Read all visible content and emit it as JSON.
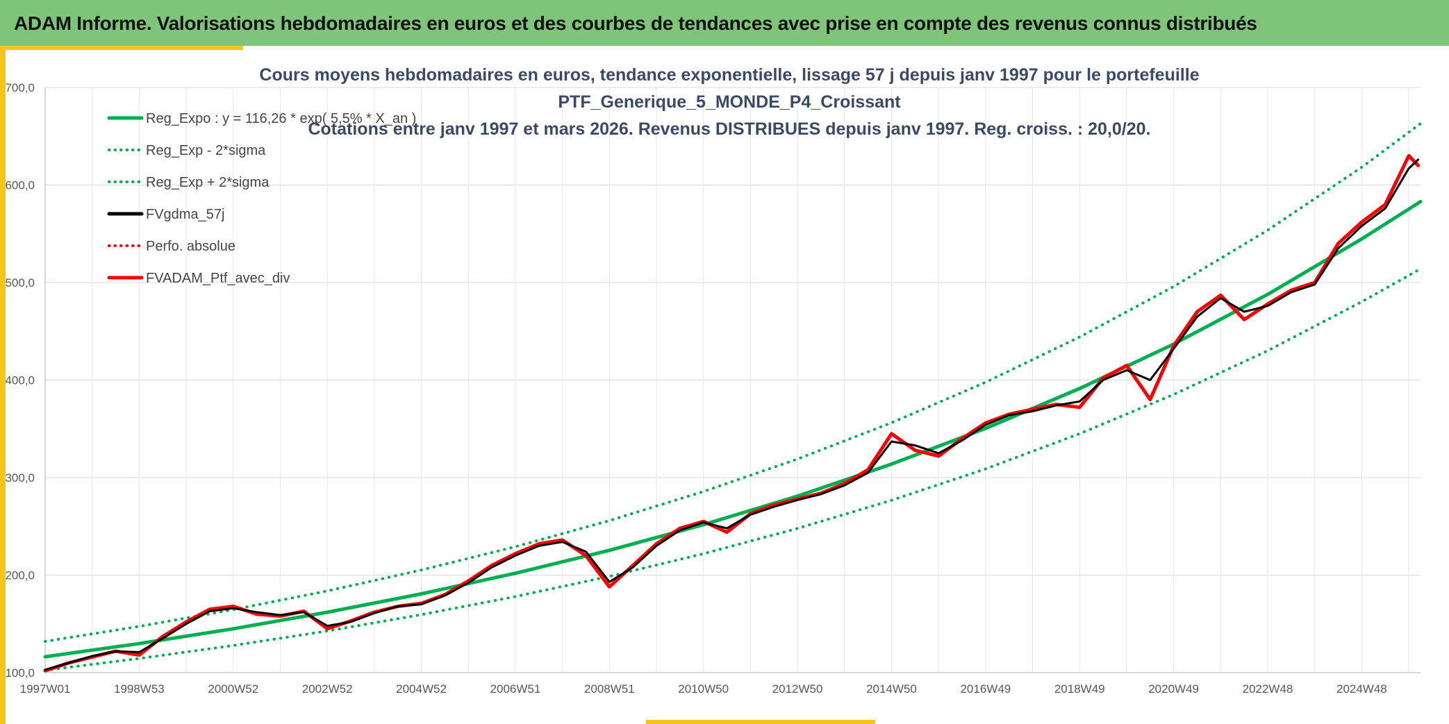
{
  "header": {
    "title": "ADAM Informe. Valorisations hebdomadaires en euros et des courbes de tendances avec prise en compte des revenus connus distribués",
    "background": "#7ec57a",
    "accent": "#f5c518"
  },
  "chart_data": {
    "type": "line",
    "title_lines": [
      "Cours moyens hebdomadaires en euros, tendance exponentielle, lissage 57 j depuis janv 1997 pour le portefeuille",
      "PTF_Generique_5_MONDE_P4_Croissant",
      "Cotations entre janv 1997 et mars 2026. Revenus DISTRIBUES depuis janv 1997. Reg. croiss. : 20,0/20."
    ],
    "xlabel": "",
    "ylabel": "",
    "ylim": [
      100,
      700
    ],
    "xlim": [
      1997.0,
      2026.25
    ],
    "y_ticks": [
      "100,0",
      "200,0",
      "300,0",
      "400,0",
      "500,0",
      "600,0",
      "700,0"
    ],
    "x_tick_labels": [
      "1997W01",
      "1998W53",
      "2000W52",
      "2002W52",
      "2004W52",
      "2006W51",
      "2008W51",
      "2010W50",
      "2012W50",
      "2014W50",
      "2016W49",
      "2018W49",
      "2020W49",
      "2022W48",
      "2024W48"
    ],
    "grid": true,
    "legend": [
      {
        "label": "Reg_Expo : y = 116,26 * exp( 5,5% *  X_an )",
        "color": "#00b050",
        "style": "solid"
      },
      {
        "label": "Reg_Exp - 2*sigma",
        "color": "#00b050",
        "style": "dotted"
      },
      {
        "label": "Reg_Exp + 2*sigma",
        "color": "#00b050",
        "style": "dotted"
      },
      {
        "label": "FVgdma_57j",
        "color": "#000000",
        "style": "solid"
      },
      {
        "label": "Perfo. absolue",
        "color": "#ff0000",
        "style": "dotted"
      },
      {
        "label": "FVADAM_Ptf_avec_div",
        "color": "#ff0000",
        "style": "solid"
      }
    ],
    "series": [
      {
        "name": "Reg_Expo",
        "color": "#00b050",
        "style": "solid",
        "x": [
          1997,
          1999,
          2001,
          2003,
          2005,
          2007,
          2009,
          2011,
          2013,
          2015,
          2017,
          2019,
          2021,
          2023,
          2025,
          2026.25
        ],
        "values": [
          116.3,
          129.8,
          145.0,
          161.9,
          180.8,
          201.9,
          225.4,
          251.7,
          281.0,
          313.8,
          350.4,
          391.3,
          436.9,
          487.8,
          544.7,
          583.0
        ]
      },
      {
        "name": "Reg_Exp - 2*sigma",
        "color": "#00b050",
        "style": "dotted",
        "x": [
          1997,
          1999,
          2001,
          2003,
          2005,
          2007,
          2009,
          2011,
          2013,
          2015,
          2017,
          2019,
          2021,
          2023,
          2025,
          2026.25
        ],
        "values": [
          102.5,
          114.5,
          127.8,
          142.7,
          159.4,
          178.0,
          198.7,
          221.9,
          247.8,
          276.7,
          308.9,
          345.0,
          385.2,
          430.1,
          480.3,
          514.0
        ]
      },
      {
        "name": "Reg_Exp + 2*sigma",
        "color": "#00b050",
        "style": "dotted",
        "x": [
          1997,
          1999,
          2001,
          2003,
          2005,
          2007,
          2009,
          2011,
          2013,
          2015,
          2017,
          2019,
          2021,
          2023,
          2025,
          2026.25
        ],
        "values": [
          132.0,
          147.4,
          164.6,
          183.8,
          205.2,
          229.1,
          255.9,
          285.7,
          319.0,
          356.2,
          397.7,
          444.1,
          495.9,
          553.7,
          618.2,
          663.0
        ]
      },
      {
        "name": "FVgdma_57j",
        "color": "#000000",
        "style": "solid",
        "x": [
          1997,
          1997.5,
          1998,
          1998.5,
          1999,
          1999.5,
          2000,
          2000.5,
          2001,
          2001.5,
          2002,
          2002.5,
          2003,
          2003.5,
          2004,
          2004.5,
          2005,
          2005.5,
          2006,
          2006.5,
          2007,
          2007.5,
          2008,
          2008.5,
          2009,
          2009.5,
          2010,
          2010.5,
          2011,
          2011.5,
          2012,
          2012.5,
          2013,
          2013.5,
          2014,
          2014.5,
          2015,
          2015.5,
          2016,
          2016.5,
          2017,
          2017.5,
          2018,
          2018.5,
          2019,
          2019.5,
          2020,
          2020.5,
          2021,
          2021.5,
          2022,
          2022.5,
          2023,
          2023.5,
          2024,
          2024.5,
          2025,
          2025.5,
          2026,
          2026.2
        ],
        "values": [
          103,
          110,
          117,
          122,
          121,
          135,
          150,
          163,
          166,
          162,
          159,
          162,
          148,
          152,
          161,
          168,
          170,
          179,
          192,
          208,
          220,
          230,
          234,
          224,
          193,
          208,
          230,
          246,
          254,
          248,
          262,
          270,
          277,
          283,
          292,
          305,
          337,
          333,
          325,
          338,
          354,
          364,
          368,
          374,
          378,
          400,
          410,
          400,
          432,
          465,
          484,
          470,
          476,
          490,
          498,
          535,
          558,
          576,
          617,
          626
        ]
      },
      {
        "name": "Perfo. absolue",
        "color": "#ff0000",
        "style": "dotted",
        "x": [
          1997,
          1997.5,
          1998,
          1998.5,
          1999,
          1999.5,
          2000,
          2000.5,
          2001,
          2001.5,
          2002,
          2002.5,
          2003,
          2003.5,
          2004,
          2004.5,
          2005,
          2005.5,
          2006,
          2006.5,
          2007,
          2007.5,
          2008,
          2008.5,
          2009,
          2009.5,
          2010,
          2010.5,
          2011,
          2011.5,
          2012,
          2012.5,
          2013,
          2013.5,
          2014,
          2014.5,
          2015,
          2015.5,
          2016,
          2016.5,
          2017,
          2017.5,
          2018,
          2018.5,
          2019,
          2019.5,
          2020,
          2020.5,
          2021,
          2021.5,
          2022,
          2022.5,
          2023,
          2023.5,
          2024,
          2024.5,
          2025,
          2025.5,
          2026,
          2026.2
        ],
        "values": [
          102,
          110,
          116,
          122,
          118,
          137,
          152,
          165,
          168,
          160,
          158,
          163,
          145,
          153,
          162,
          168,
          171,
          180,
          194,
          210,
          222,
          232,
          236,
          220,
          188,
          210,
          232,
          248,
          255,
          244,
          263,
          272,
          278,
          284,
          294,
          308,
          345,
          328,
          322,
          340,
          356,
          365,
          370,
          375,
          372,
          402,
          415,
          380,
          435,
          470,
          487,
          462,
          478,
          492,
          500,
          540,
          562,
          580,
          630,
          620
        ]
      },
      {
        "name": "FVADAM_Ptf_avec_div",
        "color": "#ff0000",
        "style": "solid",
        "x": [
          1997,
          1997.5,
          1998,
          1998.5,
          1999,
          1999.5,
          2000,
          2000.5,
          2001,
          2001.5,
          2002,
          2002.5,
          2003,
          2003.5,
          2004,
          2004.5,
          2005,
          2005.5,
          2006,
          2006.5,
          2007,
          2007.5,
          2008,
          2008.5,
          2009,
          2009.5,
          2010,
          2010.5,
          2011,
          2011.5,
          2012,
          2012.5,
          2013,
          2013.5,
          2014,
          2014.5,
          2015,
          2015.5,
          2016,
          2016.5,
          2017,
          2017.5,
          2018,
          2018.5,
          2019,
          2019.5,
          2020,
          2020.5,
          2021,
          2021.5,
          2022,
          2022.5,
          2023,
          2023.5,
          2024,
          2024.5,
          2025,
          2025.5,
          2026,
          2026.2
        ],
        "values": [
          102,
          110,
          116,
          122,
          118,
          137,
          152,
          165,
          168,
          160,
          158,
          163,
          145,
          153,
          162,
          168,
          171,
          180,
          194,
          210,
          222,
          232,
          236,
          220,
          188,
          210,
          232,
          248,
          255,
          244,
          263,
          272,
          278,
          284,
          294,
          308,
          345,
          328,
          322,
          340,
          356,
          365,
          370,
          375,
          372,
          402,
          415,
          380,
          435,
          470,
          487,
          462,
          478,
          492,
          500,
          540,
          562,
          580,
          630,
          620
        ]
      }
    ]
  }
}
